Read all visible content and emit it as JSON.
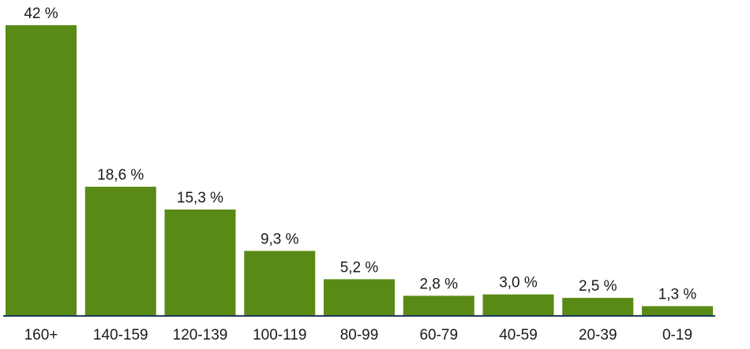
{
  "chart_data": {
    "type": "bar",
    "categories": [
      "160+",
      "140-159",
      "120-139",
      "100-119",
      "80-99",
      "60-79",
      "40-59",
      "20-39",
      "0-19"
    ],
    "values": [
      42,
      18.6,
      15.3,
      9.3,
      5.2,
      2.8,
      3.0,
      2.5,
      1.3
    ],
    "value_labels": [
      "42 %",
      "18,6 %",
      "15,3 %",
      "9,3 %",
      "5,2 %",
      "2,8 %",
      "3,0 %",
      "2,5 %",
      "1,3 %"
    ],
    "title": "",
    "xlabel": "",
    "ylabel": "",
    "ylim": [
      0,
      42
    ],
    "grid": false,
    "colors": {
      "bar": "#5a8a16",
      "axis": "#1f3a5a"
    }
  }
}
